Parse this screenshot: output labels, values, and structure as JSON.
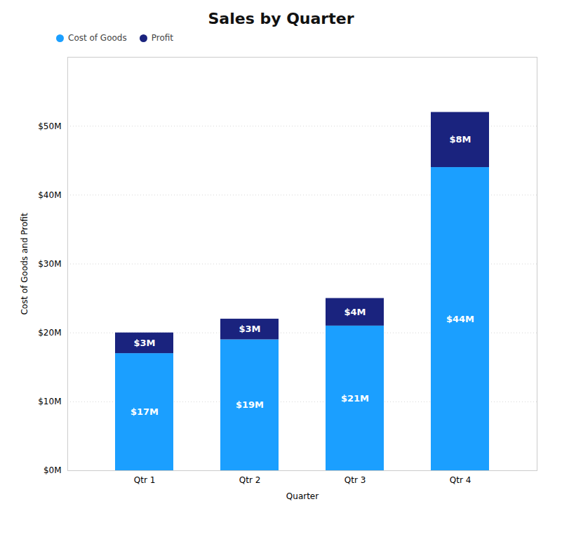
{
  "chart_data": {
    "type": "bar",
    "title": "Sales by Quarter",
    "xlabel": "Quarter",
    "ylabel": "Cost of Goods and Profit",
    "categories": [
      "Qtr 1",
      "Qtr 2",
      "Qtr 3",
      "Qtr 4"
    ],
    "series": [
      {
        "name": "Cost of Goods",
        "color": "#1B9FFF",
        "values": [
          17,
          19,
          21,
          44
        ],
        "value_labels": [
          "$17M",
          "$19M",
          "$21M",
          "$44M"
        ]
      },
      {
        "name": "Profit",
        "color": "#1A237E",
        "values": [
          3,
          3,
          4,
          8
        ],
        "value_labels": [
          "$3M",
          "$3M",
          "$4M",
          "$8M"
        ]
      }
    ],
    "stacked": true,
    "data_labels": true,
    "ylim": [
      0,
      60
    ],
    "yticks": [
      {
        "value": 0,
        "label": "$0M"
      },
      {
        "value": 10,
        "label": "$10M"
      },
      {
        "value": 20,
        "label": "$20M"
      },
      {
        "value": 30,
        "label": "$30M"
      },
      {
        "value": 40,
        "label": "$40M"
      },
      {
        "value": 50,
        "label": "$50M"
      }
    ],
    "grid": true,
    "legend": "upper left"
  }
}
